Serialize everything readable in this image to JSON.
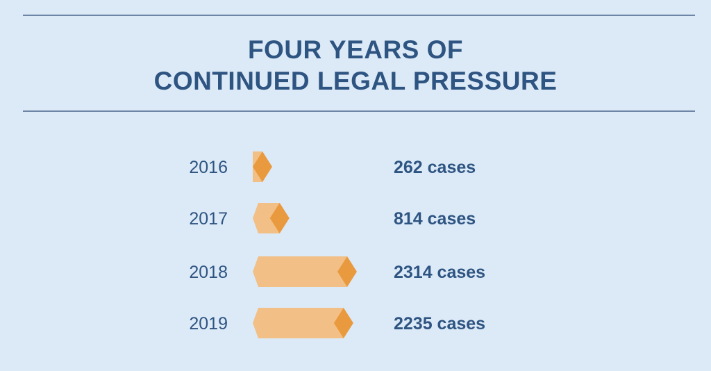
{
  "title_line1": "FOUR YEARS OF",
  "title_line2": "CONTINUED LEGAL PRESSURE",
  "colors": {
    "background": "#dceaf8",
    "text": "#2e5481",
    "rule": "#6e86a6",
    "bar_body": "#f2bf86",
    "bar_tip": "#ea9a3e"
  },
  "chart_data": {
    "type": "bar",
    "orientation": "horizontal",
    "categories": [
      "2016",
      "2017",
      "2018",
      "2019"
    ],
    "values": [
      262,
      814,
      2314,
      2235
    ],
    "value_labels": [
      "262 cases",
      "814 cases",
      "2314 cases",
      "2235 cases"
    ],
    "title": "FOUR YEARS OF CONTINUED LEGAL PRESSURE",
    "grid": false
  }
}
